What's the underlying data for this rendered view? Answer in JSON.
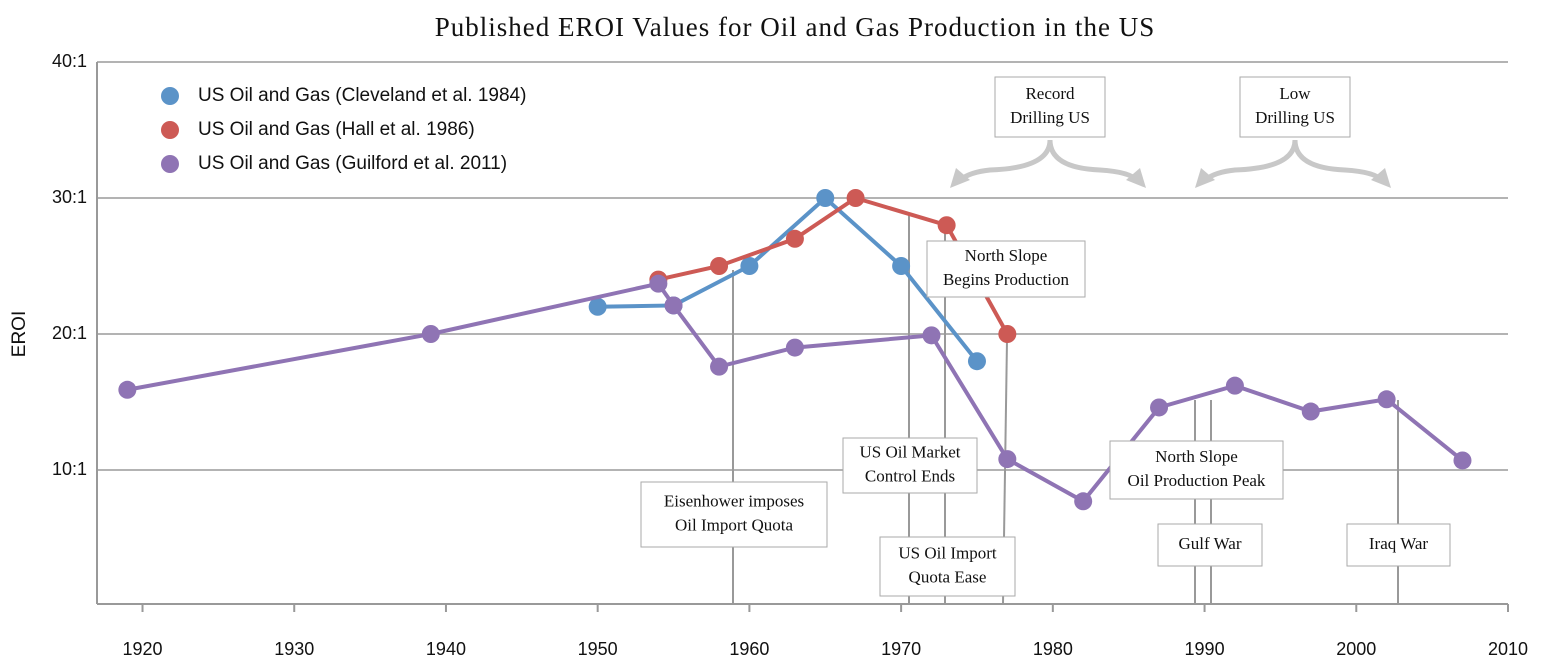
{
  "chart_data": {
    "type": "line",
    "title": "Published EROI Values for Oil and Gas Production in the US",
    "y_label": "EROI",
    "xlim": [
      1917,
      2010
    ],
    "xticks": [
      1920,
      1930,
      1940,
      1950,
      1960,
      1970,
      1980,
      1990,
      2000,
      2010
    ],
    "ylim": [
      0,
      40
    ],
    "yticks": [
      {
        "value": 10,
        "label": "10:1"
      },
      {
        "value": 20,
        "label": "20:1"
      },
      {
        "value": 30,
        "label": "30:1"
      },
      {
        "value": 40,
        "label": "40:1"
      }
    ],
    "grid": true,
    "legend": "upper left",
    "series": [
      {
        "name": "US Oil and Gas (Cleveland et al. 1984)",
        "color": "#5b93c8",
        "x": [
          1950,
          1955,
          1960,
          1965,
          1970,
          1975
        ],
        "values": [
          22,
          22.1,
          25,
          30,
          25,
          18
        ]
      },
      {
        "name": "US Oil and Gas (Hall et al. 1986)",
        "color": "#cd5a55",
        "x": [
          1954,
          1958,
          1963,
          1967,
          1973,
          1977
        ],
        "values": [
          24,
          25,
          27,
          30,
          28,
          20
        ]
      },
      {
        "name": "US Oil and Gas (Guilford et al. 2011)",
        "color": "#8f74b4",
        "x": [
          1919,
          1939,
          1954,
          1955,
          1958,
          1963,
          1972,
          1977,
          1982,
          1987,
          1992,
          1997,
          2002,
          2007
        ],
        "values": [
          15.9,
          20,
          23.7,
          22.1,
          17.6,
          19,
          19.9,
          10.8,
          7.7,
          14.6,
          16.2,
          14.3,
          15.2,
          10.7
        ]
      }
    ],
    "annotations": [
      {
        "lines": [
          "Record",
          "Drilling US"
        ]
      },
      {
        "lines": [
          "Low",
          "Drilling US"
        ]
      },
      {
        "lines": [
          "North Slope",
          "Begins Production"
        ]
      },
      {
        "lines": [
          "US Oil Market",
          "Control Ends"
        ]
      },
      {
        "lines": [
          "Eisenhower imposes",
          "Oil Import Quota"
        ]
      },
      {
        "lines": [
          "US Oil Import",
          "Quota Ease"
        ]
      },
      {
        "lines": [
          "North Slope",
          "Oil Production Peak"
        ]
      },
      {
        "lines": [
          "Gulf War"
        ]
      },
      {
        "lines": [
          "Iraq War"
        ]
      }
    ]
  }
}
